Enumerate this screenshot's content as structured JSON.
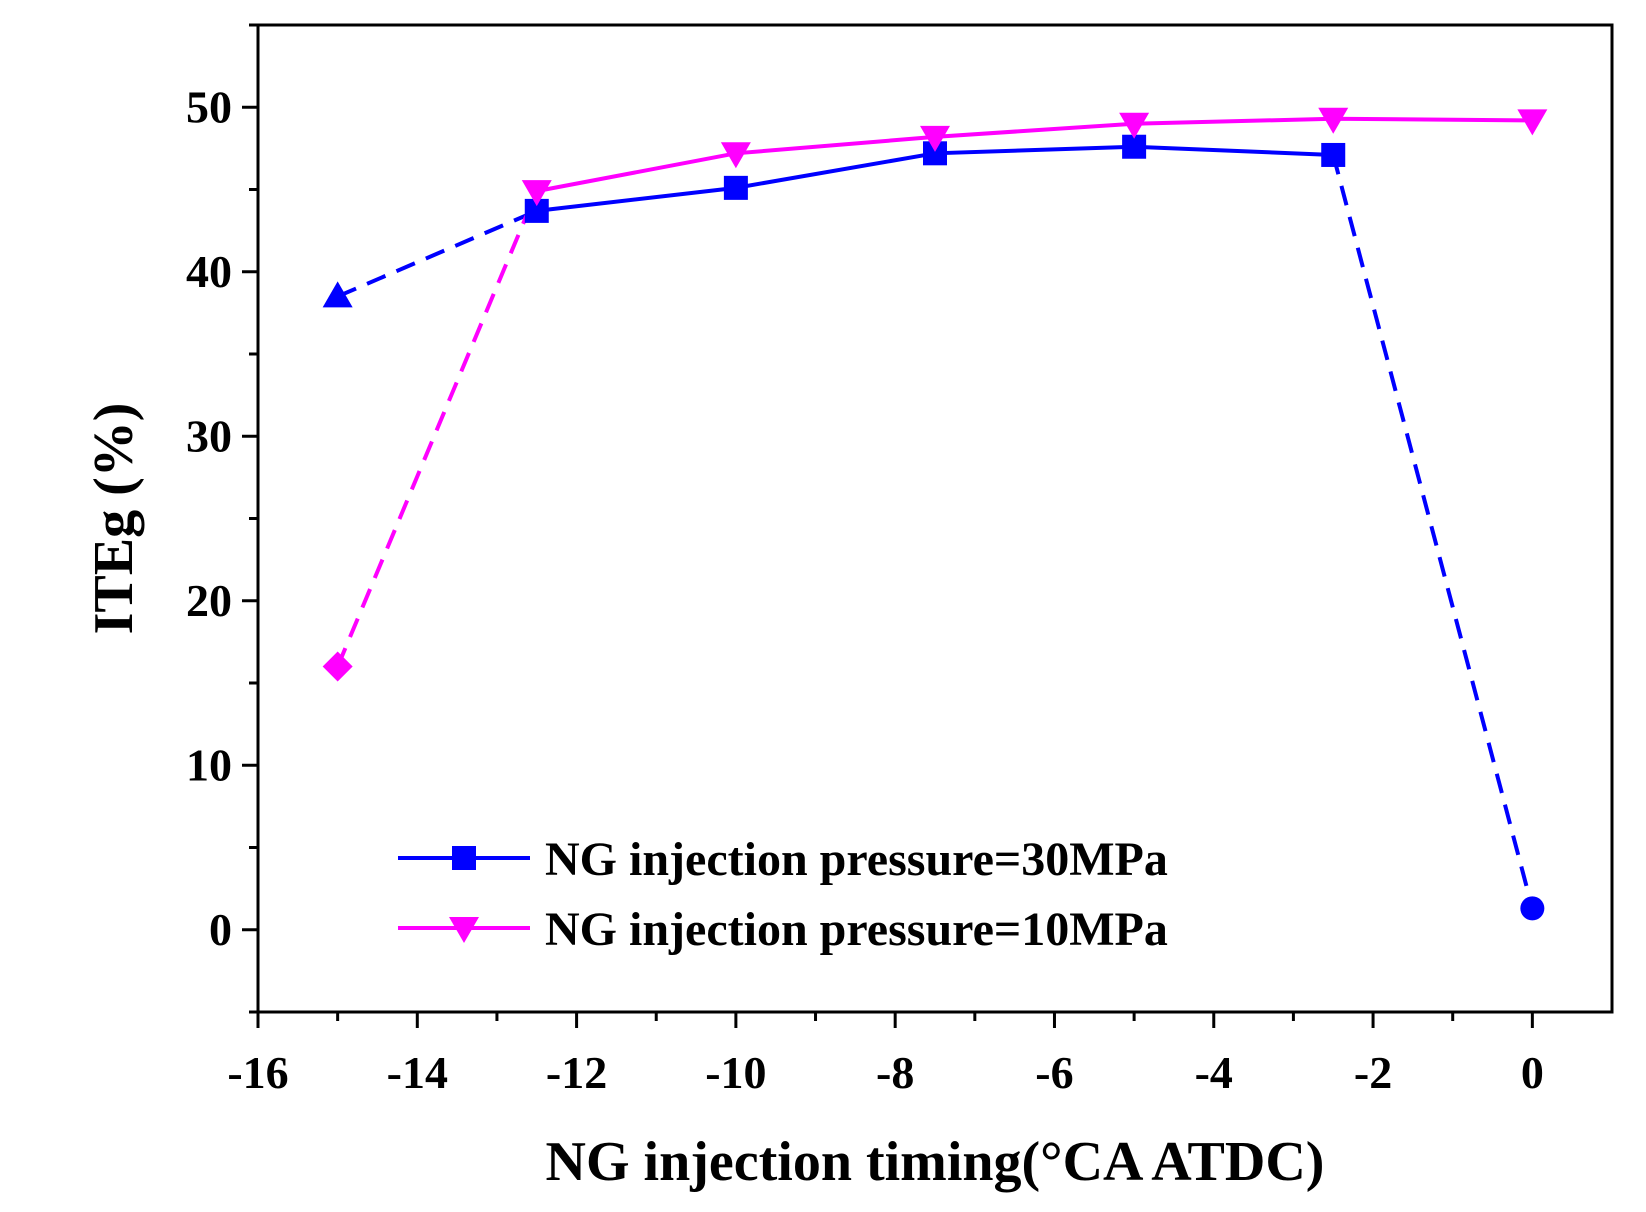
{
  "chart_data": {
    "type": "line",
    "title": "",
    "xlabel": "NG injection timing(°CA  ATDC)",
    "ylabel": "ITEg (%)",
    "xlim": [
      -16,
      1
    ],
    "ylim": [
      -5,
      55
    ],
    "xticks": [
      -16,
      -14,
      -12,
      -10,
      -8,
      -6,
      -4,
      -2,
      0
    ],
    "yticks": [
      0,
      10,
      20,
      30,
      40,
      50
    ],
    "grid": false,
    "legend_position": "lower-center",
    "series": [
      {
        "name": "NG injection pressure=30MPa",
        "color": "#0000ff",
        "marker": "square",
        "x": [
          -12.5,
          -10,
          -7.5,
          -5,
          -2.5
        ],
        "y": [
          43.7,
          45.1,
          47.2,
          47.6,
          47.1
        ]
      },
      {
        "name": "NG injection pressure=10MPa",
        "color": "#ff00ff",
        "marker": "triangle-down",
        "x": [
          -12.5,
          -10,
          -7.5,
          -5,
          -2.5,
          0
        ],
        "y": [
          44.9,
          47.2,
          48.2,
          49.0,
          49.3,
          49.2
        ]
      }
    ],
    "dashed_segments": [
      {
        "color": "#0000ff",
        "x": [
          -15,
          -12.5
        ],
        "y": [
          38.5,
          43.7
        ]
      },
      {
        "color": "#0000ff",
        "x": [
          -2.5,
          0
        ],
        "y": [
          47.1,
          1.3
        ]
      },
      {
        "color": "#ff00ff",
        "x": [
          -15,
          -12.5
        ],
        "y": [
          16.0,
          44.9
        ]
      }
    ],
    "extra_points": [
      {
        "marker": "triangle-up",
        "color": "#0000ff",
        "x": -15,
        "y": 38.5
      },
      {
        "marker": "circle",
        "color": "#0000ff",
        "x": 0,
        "y": 1.3
      },
      {
        "marker": "diamond",
        "color": "#ff00ff",
        "x": -15,
        "y": 16.0
      }
    ]
  }
}
